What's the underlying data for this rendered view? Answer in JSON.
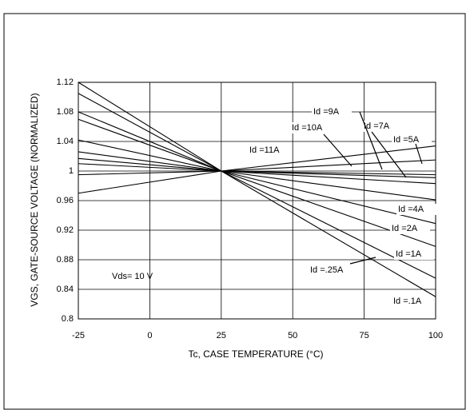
{
  "chart_data": {
    "type": "line",
    "xlabel": "Tc, CASE TEMPERATURE (°C)",
    "ylabel": "VGS, GATE-SOURCE VOLTAGE (NORMALIZED)",
    "annotation": "Vds= 10 V",
    "x": [
      -25,
      25,
      100
    ],
    "series": [
      {
        "name": "Id =.1A",
        "color": "#000000",
        "values": [
          1.12,
          1.0,
          0.83
        ]
      },
      {
        "name": "Id =.25A",
        "color": "#000000",
        "values": [
          1.105,
          1.0,
          0.855
        ]
      },
      {
        "name": "Id =1A",
        "color": "#000000",
        "values": [
          1.08,
          1.0,
          0.898
        ]
      },
      {
        "name": "Id =2A",
        "color": "#000000",
        "values": [
          1.07,
          1.0,
          0.929
        ]
      },
      {
        "name": "Id =4A",
        "color": "#000000",
        "values": [
          1.042,
          1.0,
          0.961
        ]
      },
      {
        "name": "Id =5A",
        "color": "#000000",
        "values": [
          1.026,
          1.0,
          0.983
        ]
      },
      {
        "name": "Id =7A",
        "color": "#000000",
        "values": [
          1.017,
          1.0,
          0.991
        ]
      },
      {
        "name": "Id =9A",
        "color": "#000000",
        "values": [
          1.01,
          1.0,
          0.995
        ]
      },
      {
        "name": "Id =10A",
        "color": "#000000",
        "values": [
          0.995,
          1.0,
          1.015
        ]
      },
      {
        "name": "Id =11A",
        "color": "#000000",
        "values": [
          0.97,
          1.0,
          1.034
        ]
      }
    ],
    "xlim": [
      -25,
      100
    ],
    "xticks": [
      -25,
      0,
      25,
      50,
      75,
      100
    ],
    "ylim": [
      0.8,
      1.12
    ],
    "yticks": [
      0.8,
      0.84,
      0.88,
      0.92,
      0.96,
      1,
      1.04,
      1.08,
      1.12
    ],
    "grid": true
  }
}
